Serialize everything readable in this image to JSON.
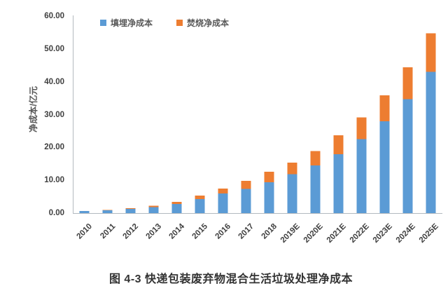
{
  "caption": "图 4-3 快递包装废弃物混合生活垃圾处理净成本",
  "chart_data": {
    "type": "bar",
    "stacked": true,
    "title": "图 4-3 快递包装废弃物混合生活垃圾处理净成本",
    "xlabel": "",
    "ylabel": "净成本/亿元",
    "ylim": [
      0,
      60
    ],
    "y_tick_values": [
      0,
      10,
      20,
      30,
      40,
      50,
      60
    ],
    "y_tick_labels": [
      "0.00",
      "10.00",
      "20.00",
      "30.00",
      "40.00",
      "50.00",
      "60.00"
    ],
    "grid": false,
    "legend_position": "top-center",
    "categories": [
      "2010",
      "2011",
      "2012",
      "2013",
      "2014",
      "2015",
      "2016",
      "2017",
      "2018",
      "2019E",
      "2020E",
      "2021E",
      "2022E",
      "2023E",
      "2024E",
      "2025E"
    ],
    "series": [
      {
        "name": "填埋净成本",
        "color": "#5B9BD5",
        "values": [
          0.6,
          0.9,
          1.3,
          1.8,
          2.8,
          4.3,
          6.0,
          7.4,
          9.4,
          11.9,
          14.5,
          17.9,
          22.5,
          28.0,
          34.7,
          43.0
        ]
      },
      {
        "name": "焚烧净成本",
        "color": "#ED7D31",
        "values": [
          0.05,
          0.1,
          0.15,
          0.4,
          0.6,
          1.0,
          1.5,
          2.4,
          3.2,
          3.5,
          4.4,
          5.8,
          6.6,
          7.9,
          9.7,
          11.8
        ]
      }
    ],
    "totals": [
      0.65,
      1.0,
      1.45,
      2.2,
      3.4,
      5.3,
      7.5,
      9.8,
      12.6,
      15.4,
      18.9,
      23.7,
      29.1,
      35.9,
      44.4,
      54.8
    ],
    "axis_color": "#b3b9bf",
    "text_color": "#404040"
  }
}
